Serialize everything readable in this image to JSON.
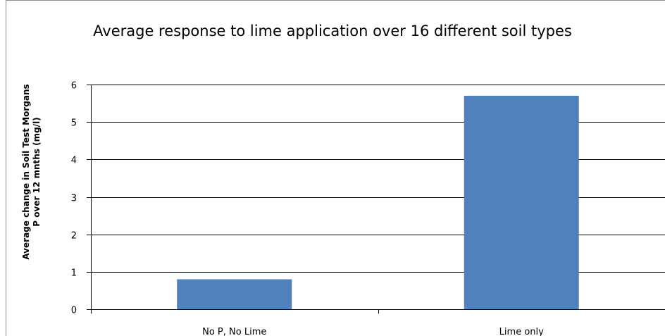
{
  "chart_data": {
    "type": "bar",
    "title": "Average response to lime application over 16 different soil types",
    "ylabel_lines": [
      "Average change in Soil Test Morgans",
      "P over 12 mnths  (mg/l)"
    ],
    "xlabel": "",
    "categories": [
      "No P, No Lime",
      "Lime only"
    ],
    "values": [
      0.8,
      5.7
    ],
    "ylim": [
      0,
      6
    ],
    "yticks": [
      0,
      1,
      2,
      3,
      4,
      5,
      6
    ],
    "grid": true,
    "legend": "none",
    "colors": {
      "bar": "#4f81bd",
      "grid": "#000000",
      "axis": "#000000"
    }
  }
}
